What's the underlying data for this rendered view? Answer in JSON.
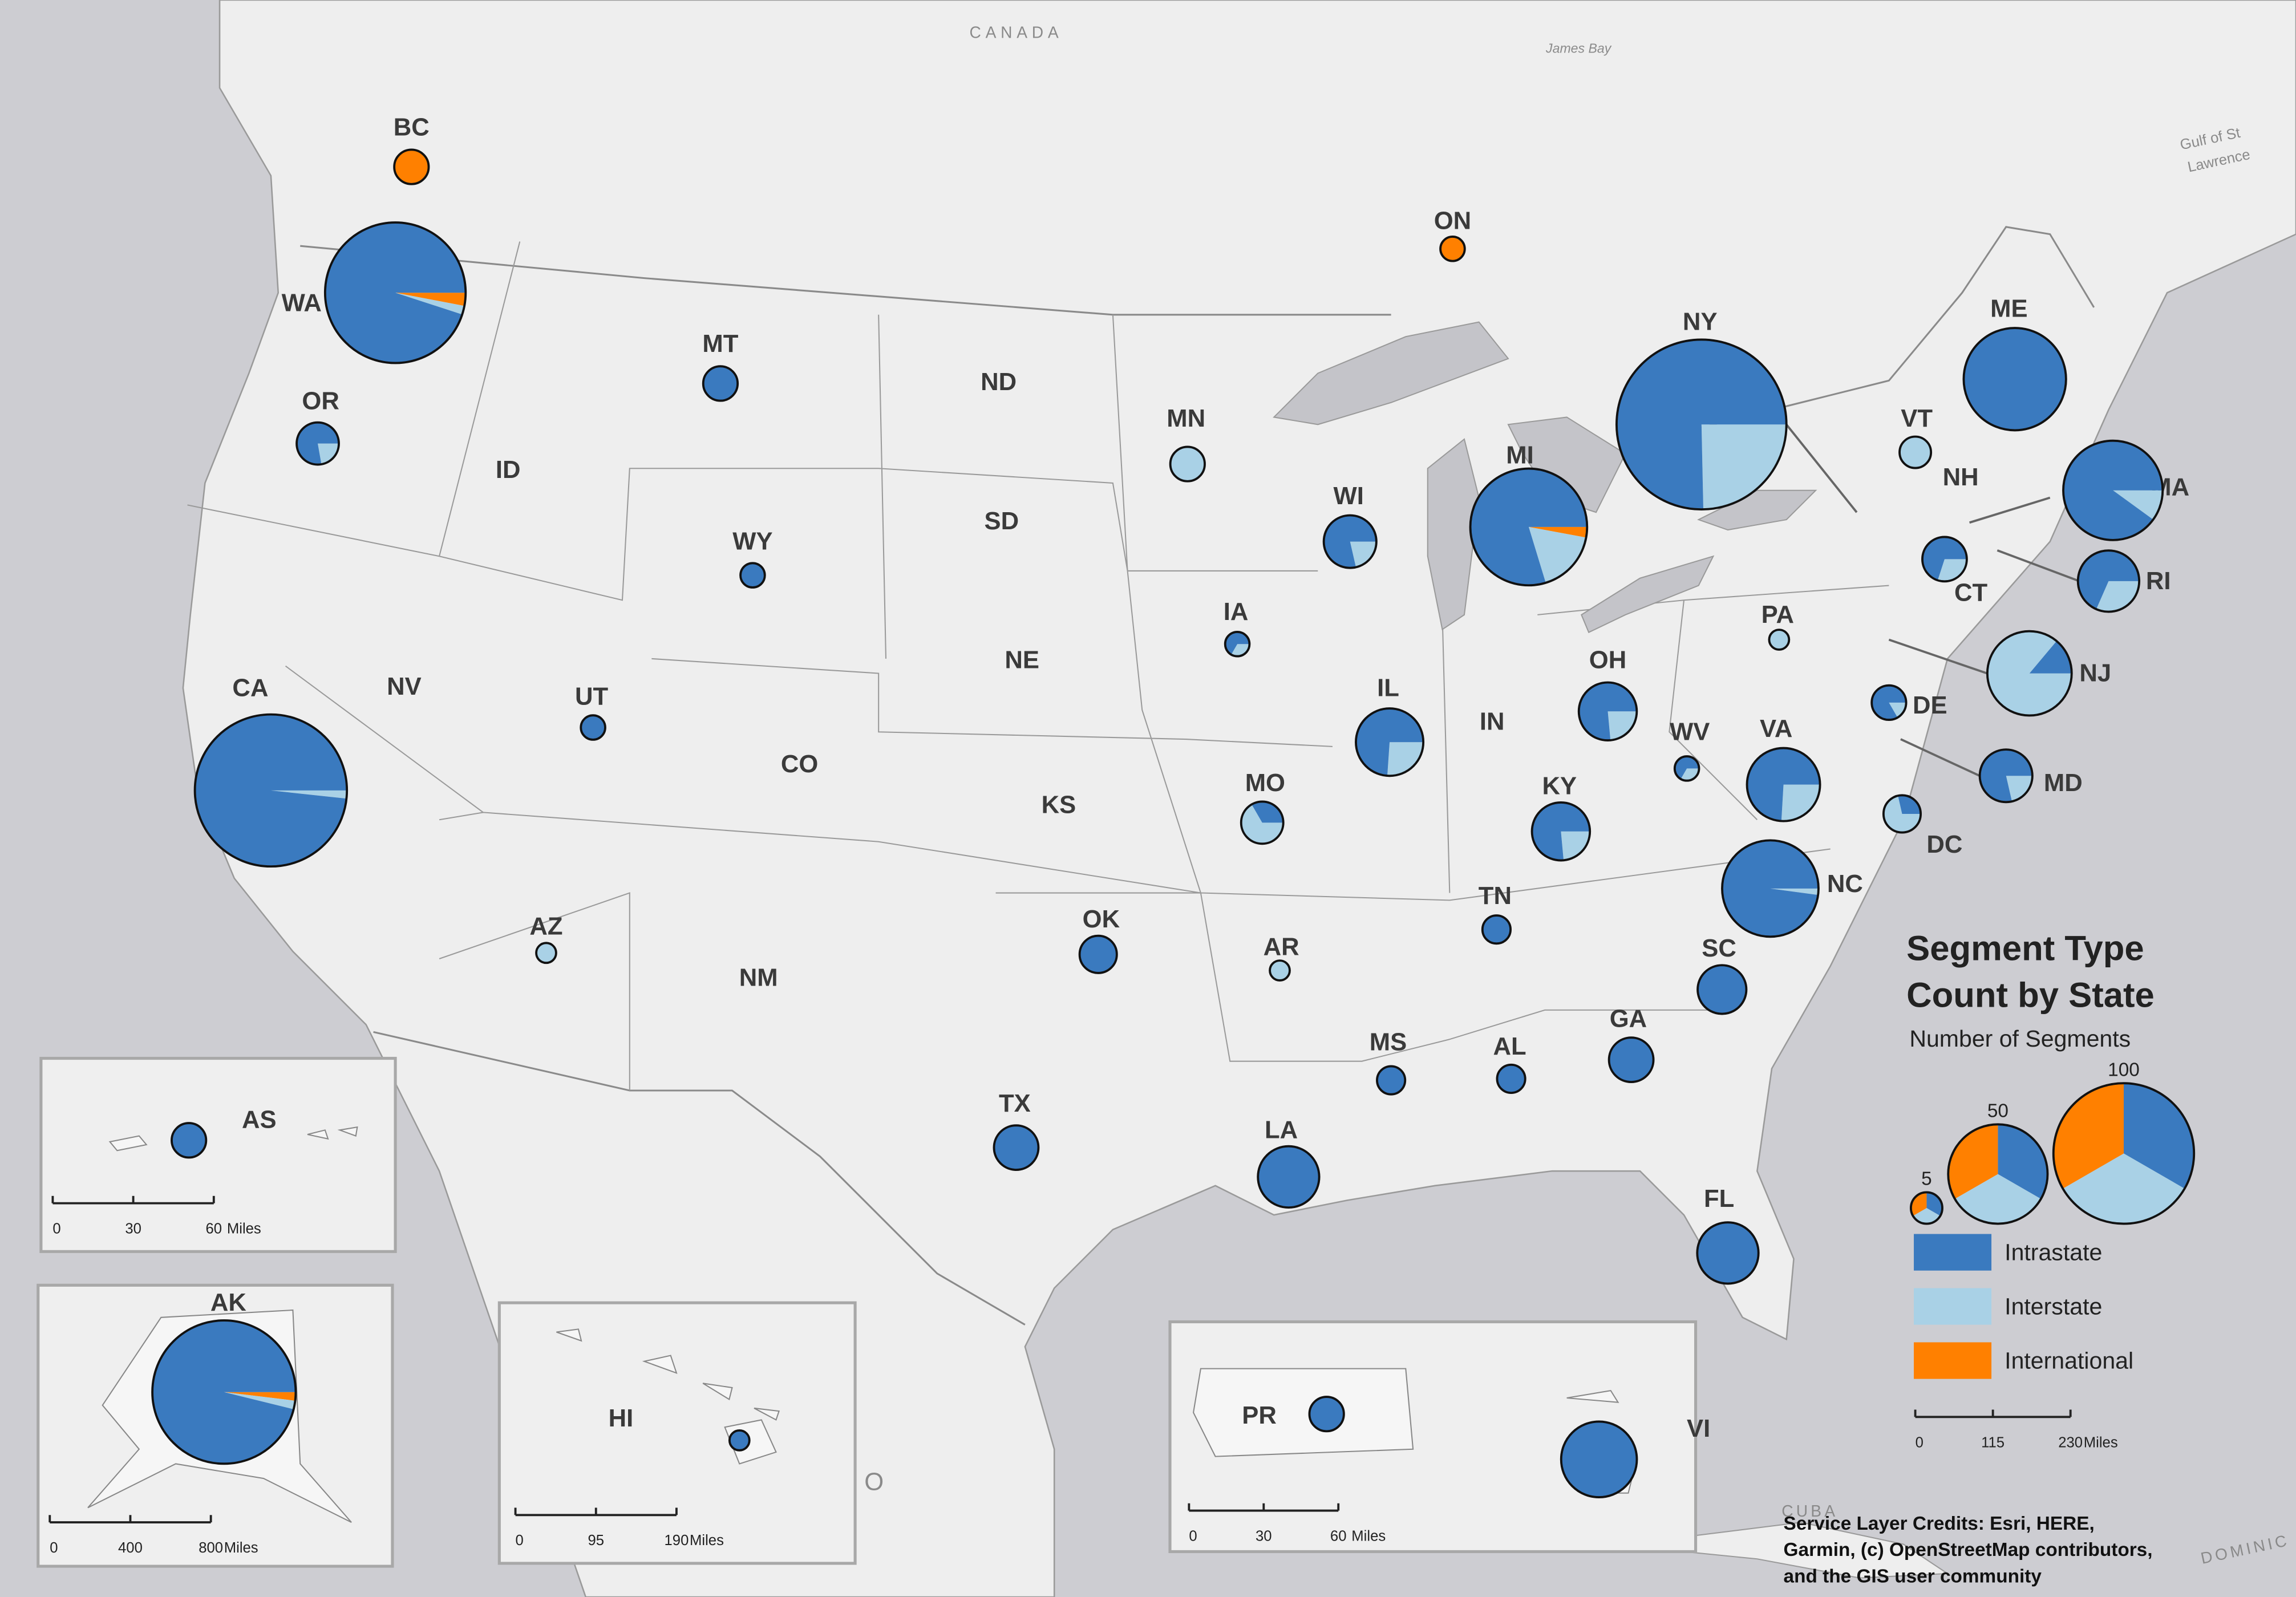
{
  "legend": {
    "title_lines": [
      "Segment Type",
      "Count by State"
    ],
    "subtitle": "Number of Segments",
    "size_samples": [
      5,
      50,
      100
    ],
    "categories": [
      {
        "name": "Intrastate",
        "color": "#3a7abf"
      },
      {
        "name": "Interstate",
        "color": "#a9d1e6"
      },
      {
        "name": "International",
        "color": "#ff8000"
      }
    ]
  },
  "regions": [
    {
      "label": "BC",
      "values": [
        0,
        0,
        6
      ]
    },
    {
      "label": "WA",
      "values": [
        95,
        2,
        3
      ]
    },
    {
      "label": "OR",
      "values": [
        7,
        2,
        0
      ]
    },
    {
      "label": "MT",
      "values": [
        6,
        0,
        0
      ]
    },
    {
      "label": "WY",
      "values": [
        3,
        0,
        0
      ]
    },
    {
      "label": "UT",
      "values": [
        3,
        0,
        0
      ]
    },
    {
      "label": "AZ",
      "values": [
        0,
        2,
        0
      ]
    },
    {
      "label": "CA",
      "values": [
        115,
        2,
        0
      ]
    },
    {
      "label": "ON",
      "values": [
        0,
        0,
        3
      ]
    },
    {
      "label": "MN",
      "values": [
        0,
        6,
        0
      ]
    },
    {
      "label": "WI",
      "values": [
        11,
        3,
        0
      ]
    },
    {
      "label": "IA",
      "values": [
        2,
        1,
        0
      ]
    },
    {
      "label": "MO",
      "values": [
        3,
        6,
        0
      ]
    },
    {
      "label": "AR",
      "values": [
        0,
        2,
        0
      ]
    },
    {
      "label": "IL",
      "values": [
        17,
        6,
        0
      ]
    },
    {
      "label": "MI",
      "values": [
        55,
        12,
        2
      ]
    },
    {
      "label": "OH",
      "values": [
        13,
        4,
        0
      ]
    },
    {
      "label": "KY",
      "values": [
        13,
        4,
        0
      ]
    },
    {
      "label": "WV",
      "values": [
        2,
        1,
        0
      ]
    },
    {
      "label": "VA",
      "values": [
        20,
        7,
        0
      ]
    },
    {
      "label": "NC",
      "values": [
        46,
        1,
        0
      ]
    },
    {
      "label": "TN",
      "values": [
        4,
        0,
        0
      ]
    },
    {
      "label": "MS",
      "values": [
        4,
        0,
        0
      ]
    },
    {
      "label": "AL",
      "values": [
        4,
        0,
        0
      ]
    },
    {
      "label": "GA",
      "values": [
        10,
        0,
        0
      ]
    },
    {
      "label": "SC",
      "values": [
        12,
        0,
        0
      ]
    },
    {
      "label": "FL",
      "values": [
        19,
        0,
        0
      ]
    },
    {
      "label": "LA",
      "values": [
        19,
        0,
        0
      ]
    },
    {
      "label": "TX",
      "values": [
        10,
        0,
        0
      ]
    },
    {
      "label": "OK",
      "values": [
        7,
        0,
        0
      ]
    },
    {
      "label": "PA",
      "values": [
        0,
        2,
        0
      ]
    },
    {
      "label": "NY",
      "values": [
        110,
        36,
        0
      ]
    },
    {
      "label": "VT",
      "values": [
        0,
        5,
        0
      ]
    },
    {
      "label": "ME",
      "values": [
        53,
        0,
        0
      ]
    },
    {
      "label": "MA",
      "values": [
        45,
        5,
        0
      ]
    },
    {
      "label": "RI",
      "values": [
        13,
        6,
        0
      ]
    },
    {
      "label": "CT",
      "values": [
        7,
        3,
        0
      ]
    },
    {
      "label": "NJ",
      "values": [
        5,
        31,
        0
      ]
    },
    {
      "label": "DE",
      "values": [
        5,
        1,
        0
      ]
    },
    {
      "label": "MD",
      "values": [
        11,
        3,
        0
      ]
    },
    {
      "label": "DC",
      "values": [
        2,
        5,
        0
      ]
    },
    {
      "label": "AK",
      "values": [
        100,
        2,
        2
      ]
    },
    {
      "label": "AS",
      "values": [
        6,
        0,
        0
      ]
    },
    {
      "label": "HI",
      "values": [
        2,
        0,
        0
      ]
    },
    {
      "label": "PR",
      "values": [
        6,
        0,
        0
      ]
    },
    {
      "label": "VI",
      "values": [
        29,
        0,
        0
      ]
    }
  ],
  "labels_without_pies": [
    "ID",
    "NV",
    "CO",
    "NM",
    "ND",
    "SD",
    "NE",
    "KS",
    "IN",
    "NH"
  ],
  "place_names": [
    "CANADA",
    "James Bay",
    "Gulf of St",
    "Lawrence",
    "MEXICO",
    "CUBA",
    "DOMINIC"
  ],
  "scale_bars": [
    {
      "ticks": [
        0,
        30,
        60
      ],
      "unit": "Miles"
    },
    {
      "ticks": [
        0,
        400,
        800
      ],
      "unit": "Miles"
    },
    {
      "ticks": [
        0,
        95,
        190
      ],
      "unit": "Miles"
    },
    {
      "ticks": [
        0,
        30,
        60
      ],
      "unit": "Miles"
    },
    {
      "ticks": [
        0,
        115,
        230
      ],
      "unit": "Miles"
    }
  ],
  "credits": [
    "Service Layer Credits: Esri, HERE,",
    "Garmin, (c) OpenStreetMap contributors,",
    "and the GIS user community"
  ]
}
